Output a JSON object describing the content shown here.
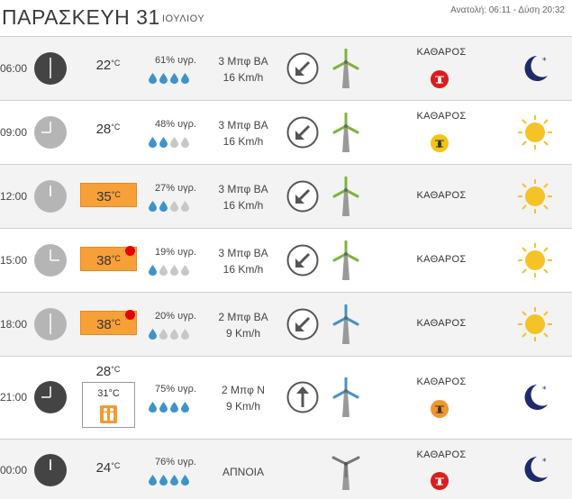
{
  "header": {
    "day": "ΠΑΡΑΣΚΕΥΗ 31",
    "month": "ΙΟΥΛΙΟΥ",
    "sun_times": "Ανατολή: 06:11  -  Δύση 20:32"
  },
  "units": {
    "celsius": "°C"
  },
  "rows": [
    {
      "time": "06:00",
      "temp": "22",
      "humidity": "61% υγρ.",
      "drops_full": 4,
      "wind_bf": "3 Μπφ ΒΑ",
      "wind_kmh": "16 Km/h",
      "sky": "ΚΑΘΑΡΟΣ",
      "mosquito": "red",
      "icon": "moon",
      "clock": "dark"
    },
    {
      "time": "09:00",
      "temp": "28",
      "humidity": "48% υγρ.",
      "drops_full": 2,
      "wind_bf": "3 Μπφ ΒΑ",
      "wind_kmh": "16 Km/h",
      "sky": "ΚΑΘΑΡΟΣ",
      "mosquito": "yellow",
      "icon": "sun",
      "clock": "light"
    },
    {
      "time": "12:00",
      "temp": "35",
      "humidity": "27% υγρ.",
      "drops_full": 2,
      "wind_bf": "3 Μπφ ΒΑ",
      "wind_kmh": "16 Km/h",
      "sky": "ΚΑΘΑΡΟΣ",
      "mosquito": "none",
      "icon": "sun",
      "clock": "light"
    },
    {
      "time": "15:00",
      "temp": "38",
      "humidity": "19% υγρ.",
      "drops_full": 1,
      "wind_bf": "3 Μπφ ΒΑ",
      "wind_kmh": "16 Km/h",
      "sky": "ΚΑΘΑΡΟΣ",
      "mosquito": "none",
      "icon": "sun",
      "clock": "light"
    },
    {
      "time": "18:00",
      "temp": "38",
      "humidity": "20% υγρ.",
      "drops_full": 1,
      "wind_bf": "2 Μπφ ΒΑ",
      "wind_kmh": "9 Km/h",
      "sky": "ΚΑΘΑΡΟΣ",
      "mosquito": "none",
      "icon": "sun",
      "clock": "light"
    },
    {
      "time": "21:00",
      "temp": "28",
      "feels": "31°C",
      "humidity": "75% υγρ.",
      "drops_full": 4,
      "wind_bf": "2 Μπφ Ν",
      "wind_kmh": "9 Km/h",
      "sky": "ΚΑΘΑΡΟΣ",
      "mosquito": "orange",
      "icon": "moon",
      "clock": "dark"
    },
    {
      "time": "00:00",
      "temp": "24",
      "humidity": "76% υγρ.",
      "drops_full": 4,
      "wind_calm": "ΑΠΝΟΙΑ",
      "sky": "ΚΑΘΑΡΟΣ",
      "mosquito": "red",
      "icon": "moon",
      "clock": "dark"
    }
  ],
  "colors": {
    "temp_hot": "#f8a038",
    "heat_alert": "#e60000",
    "drop_full": "#3e93c9",
    "drop_empty": "#c7c7c7",
    "turbine_green": "#7cb342",
    "turbine_blue": "#4a90c4",
    "sun": "#f5c227",
    "moon": "#1f2a6b"
  }
}
